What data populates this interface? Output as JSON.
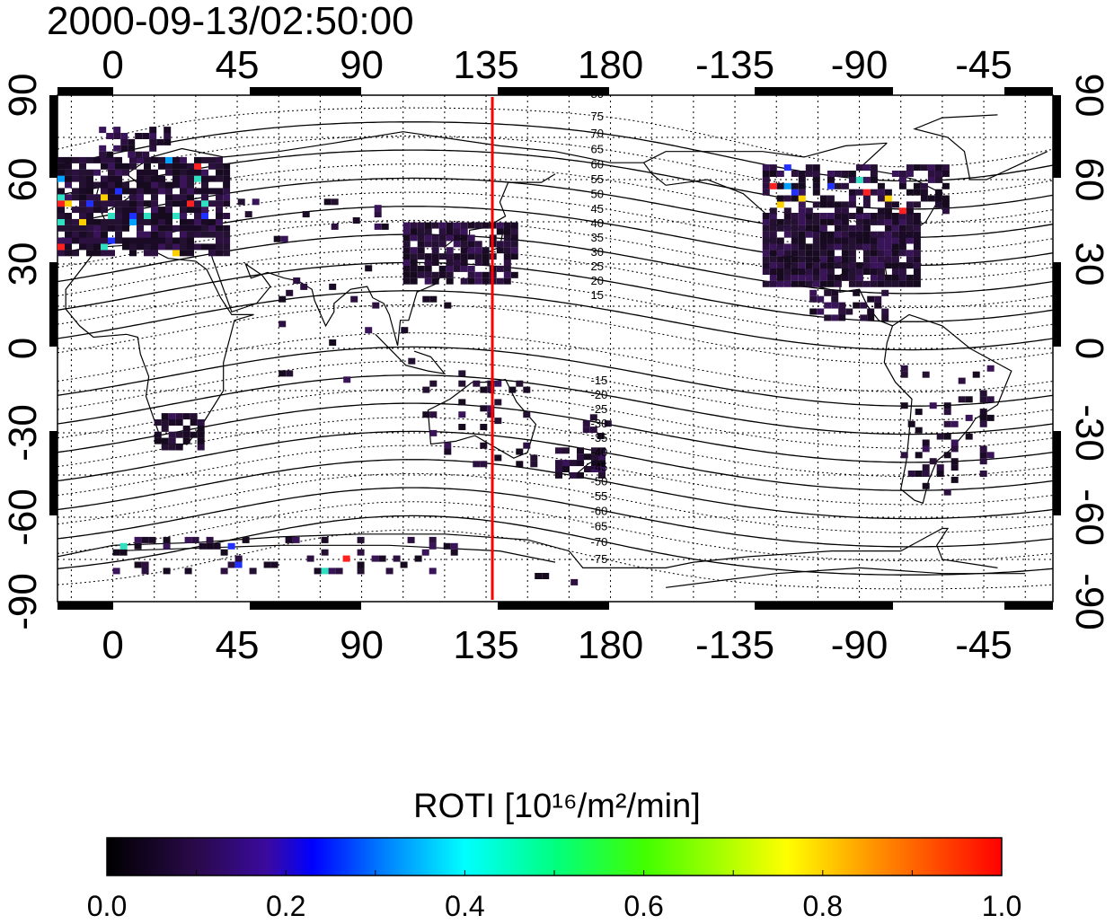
{
  "title": "2000-09-13/02:50:00",
  "map": {
    "x_ticks": [
      "0",
      "45",
      "90",
      "135",
      "180",
      "-135",
      "-90",
      "-45"
    ],
    "y_ticks": [
      "90",
      "60",
      "30",
      "0",
      "-30",
      "-60",
      "-90"
    ],
    "marker_longitude": 135,
    "marker_color": "#ff0000",
    "contour_labels_north": [
      "80",
      "75",
      "70",
      "65",
      "60",
      "55",
      "50",
      "45",
      "40",
      "35",
      "30",
      "25",
      "20",
      "15"
    ],
    "contour_labels_south": [
      "-15",
      "-20",
      "-25",
      "-30",
      "-35",
      "-40",
      "-45",
      "-50",
      "-55",
      "-60",
      "-65",
      "-70",
      "-75"
    ]
  },
  "colorbar": {
    "title": "ROTI  [10¹⁶/m²/min]",
    "ticks": [
      "0.0",
      "0.2",
      "0.4",
      "0.6",
      "0.8",
      "1.0"
    ],
    "min": 0.0,
    "max": 1.0
  }
}
